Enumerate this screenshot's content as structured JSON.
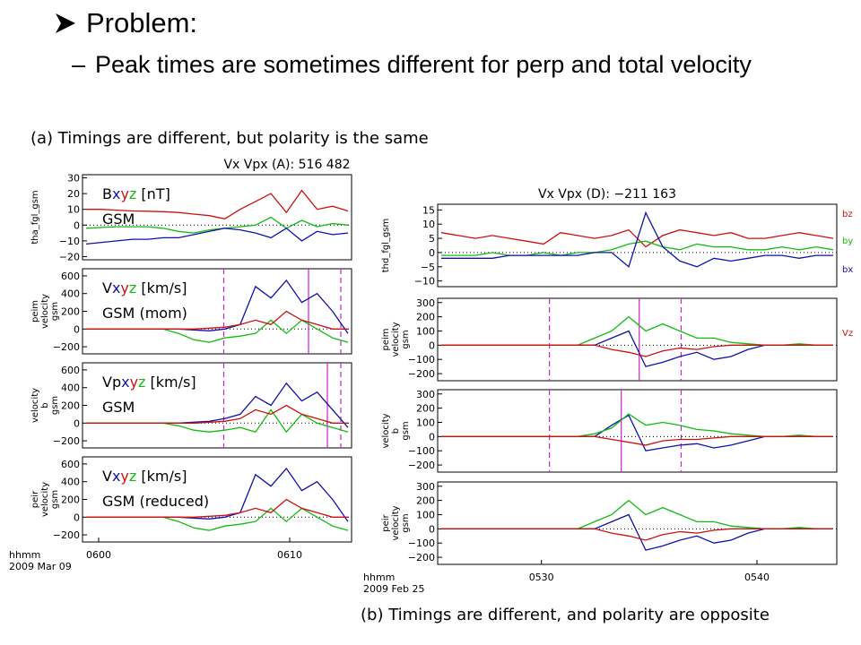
{
  "slide": {
    "problem_label": "Problem:",
    "point_dash": "–",
    "point_text": "Peak times are sometimes different for perp and total velocity",
    "caption_a": "(a) Timings are different, but polarity is the same",
    "caption_b": "(b) Timings are different, and polarity are opposite"
  },
  "colors": {
    "red": "#cc1111",
    "green": "#11bb11",
    "blue": "#1111aa",
    "magenta": "#cc22cc"
  },
  "chart_data": [
    {
      "type": "line",
      "title": "Vx Vpx (A):   516   482",
      "xticks": [
        "0600",
        "0610"
      ],
      "time_label_1": "hhmm",
      "time_label_2": "2009 Mar 09",
      "panels": [
        {
          "ylabel": [
            "tha_fgl_gsm"
          ],
          "yticks": [
            30,
            20,
            10,
            0,
            -10,
            -20
          ],
          "ylim": [
            -22,
            32
          ],
          "overlay": [
            "Bxyz [nT]",
            "GSM"
          ],
          "series": [
            {
              "name": "bz",
              "color": "red",
              "y": [
                10,
                10,
                9.5,
                9,
                8.8,
                8.5,
                8,
                7,
                6,
                4,
                10,
                15,
                20,
                8,
                22,
                10,
                12,
                9
              ]
            },
            {
              "name": "by",
              "color": "green",
              "y": [
                -2,
                -1.5,
                -1,
                -1,
                -1,
                -2,
                -4,
                -5,
                -3,
                -2,
                -1,
                0,
                5,
                -2,
                3,
                -1,
                1,
                0
              ]
            },
            {
              "name": "bx",
              "color": "blue",
              "y": [
                -12,
                -11,
                -10,
                -9,
                -9,
                -8,
                -8,
                -6,
                -4,
                -2,
                -3,
                -5,
                -8,
                -2,
                -10,
                -4,
                -6,
                -5
              ]
            }
          ]
        },
        {
          "ylabel": [
            "peim",
            "velocity",
            "gsm"
          ],
          "yticks": [
            600,
            400,
            200,
            0,
            -200
          ],
          "ylim": [
            -280,
            680
          ],
          "overlay": [
            "Vxyz [km/s]",
            "GSM (mom)"
          ],
          "vlines": [
            {
              "x": 0.525,
              "style": "dashed"
            },
            {
              "x": 0.84,
              "style": "solid"
            },
            {
              "x": 0.96,
              "style": "dashed"
            }
          ],
          "series": [
            {
              "name": "vx",
              "color": "blue",
              "y": [
                0,
                0,
                0,
                0,
                0,
                0,
                0,
                -10,
                -20,
                0,
                50,
                480,
                350,
                550,
                300,
                400,
                200,
                -50
              ]
            },
            {
              "name": "vy",
              "color": "green",
              "y": [
                0,
                0,
                0,
                0,
                0,
                0,
                -50,
                -120,
                -150,
                -100,
                -80,
                -50,
                100,
                -50,
                100,
                0,
                -100,
                -150
              ]
            },
            {
              "name": "vz",
              "color": "red",
              "y": [
                0,
                0,
                0,
                0,
                0,
                0,
                0,
                0,
                10,
                20,
                50,
                100,
                50,
                200,
                100,
                50,
                0,
                0
              ]
            }
          ]
        },
        {
          "ylabel": [
            "velocity",
            "b",
            "gsm"
          ],
          "yticks": [
            600,
            400,
            200,
            0,
            -200
          ],
          "ylim": [
            -280,
            680
          ],
          "overlay": [
            "Vpxyz [km/s]",
            "GSM"
          ],
          "vlines": [
            {
              "x": 0.525,
              "style": "dashed"
            },
            {
              "x": 0.91,
              "style": "solid"
            },
            {
              "x": 0.96,
              "style": "dashed"
            }
          ],
          "series": [
            {
              "name": "vx",
              "color": "blue",
              "y": [
                0,
                0,
                0,
                0,
                0,
                0,
                0,
                10,
                20,
                50,
                100,
                300,
                200,
                450,
                250,
                350,
                150,
                -50
              ]
            },
            {
              "name": "vy",
              "color": "green",
              "y": [
                0,
                0,
                0,
                0,
                0,
                0,
                -30,
                -80,
                -100,
                -80,
                -50,
                -100,
                150,
                -100,
                100,
                0,
                -50,
                -100
              ]
            },
            {
              "name": "vz",
              "color": "red",
              "y": [
                0,
                0,
                0,
                0,
                0,
                0,
                0,
                0,
                10,
                20,
                50,
                150,
                100,
                200,
                100,
                50,
                0,
                0
              ]
            }
          ]
        },
        {
          "ylabel": [
            "peir",
            "velocity",
            "gsm"
          ],
          "yticks": [
            600,
            400,
            200,
            0,
            -200
          ],
          "ylim": [
            -280,
            680
          ],
          "overlay": [
            "Vxyz [km/s]",
            "GSM (reduced)"
          ],
          "series": [
            {
              "name": "vx",
              "color": "blue",
              "y": [
                0,
                0,
                0,
                0,
                0,
                0,
                0,
                -10,
                -20,
                0,
                50,
                480,
                350,
                550,
                300,
                400,
                200,
                -50
              ]
            },
            {
              "name": "vy",
              "color": "green",
              "y": [
                0,
                0,
                0,
                0,
                0,
                0,
                -50,
                -120,
                -150,
                -100,
                -80,
                -50,
                100,
                -50,
                100,
                0,
                -100,
                -150
              ]
            },
            {
              "name": "vz",
              "color": "red",
              "y": [
                0,
                0,
                0,
                0,
                0,
                0,
                0,
                0,
                10,
                20,
                50,
                100,
                50,
                200,
                100,
                50,
                0,
                0
              ]
            }
          ]
        }
      ]
    },
    {
      "type": "line",
      "title": "Vx Vpx (D):   −211   163",
      "xticks": [
        "0530",
        "0540"
      ],
      "time_label_1": "hhmm",
      "time_label_2": "2009 Feb 25",
      "legend": [
        "bz",
        "by",
        "bx",
        "Vz"
      ],
      "panels": [
        {
          "ylabel": [
            "thd_fgl_gsm"
          ],
          "yticks": [
            15,
            10,
            5,
            0,
            -5,
            -10
          ],
          "ylim": [
            -12,
            17
          ],
          "series": [
            {
              "name": "bz",
              "color": "red",
              "y": [
                7,
                6,
                5,
                6,
                5,
                4,
                3,
                7,
                6,
                5,
                6,
                8,
                2,
                6,
                8,
                7,
                6,
                7,
                5,
                5,
                6,
                7,
                6,
                5
              ]
            },
            {
              "name": "by",
              "color": "green",
              "y": [
                -1,
                -1,
                -1,
                0,
                -1,
                -1,
                0,
                -1,
                0,
                0,
                1,
                3,
                4,
                2,
                1,
                3,
                2,
                2,
                1,
                1,
                2,
                1,
                2,
                1
              ]
            },
            {
              "name": "bx",
              "color": "blue",
              "y": [
                -2,
                -2,
                -2,
                -2,
                -1,
                -1,
                -1,
                -1,
                -1,
                0,
                0,
                -5,
                14,
                2,
                -3,
                -5,
                -2,
                -3,
                -2,
                -1,
                -1,
                -2,
                -1,
                -1
              ]
            }
          ]
        },
        {
          "ylabel": [
            "peim",
            "velocity",
            "gsm"
          ],
          "yticks": [
            300,
            200,
            100,
            0,
            -100,
            -200
          ],
          "ylim": [
            -250,
            330
          ],
          "vlines": [
            {
              "x": 0.28,
              "style": "dashed"
            },
            {
              "x": 0.505,
              "style": "solid"
            },
            {
              "x": 0.61,
              "style": "dashed"
            }
          ],
          "series": [
            {
              "name": "vx",
              "color": "blue",
              "y": [
                0,
                0,
                0,
                0,
                0,
                0,
                0,
                0,
                0,
                0,
                50,
                100,
                -150,
                -120,
                -80,
                -50,
                -100,
                -80,
                -30,
                0,
                0,
                0,
                0,
                0
              ]
            },
            {
              "name": "vy",
              "color": "green",
              "y": [
                0,
                0,
                0,
                0,
                0,
                0,
                0,
                0,
                0,
                50,
                100,
                200,
                100,
                150,
                100,
                50,
                50,
                20,
                10,
                0,
                0,
                10,
                0,
                0
              ]
            },
            {
              "name": "vz",
              "color": "red",
              "y": [
                0,
                0,
                0,
                0,
                0,
                0,
                0,
                0,
                0,
                0,
                -30,
                -50,
                -80,
                -40,
                -20,
                -30,
                -10,
                0,
                0,
                0,
                0,
                0,
                0,
                0
              ]
            }
          ]
        },
        {
          "ylabel": [
            "velocity",
            "b",
            "gsm"
          ],
          "yticks": [
            300,
            200,
            100,
            0,
            -100,
            -200
          ],
          "ylim": [
            -250,
            330
          ],
          "vlines": [
            {
              "x": 0.28,
              "style": "dashed"
            },
            {
              "x": 0.46,
              "style": "solid"
            },
            {
              "x": 0.61,
              "style": "dashed"
            }
          ],
          "series": [
            {
              "name": "vx",
              "color": "blue",
              "y": [
                0,
                0,
                0,
                0,
                0,
                0,
                0,
                0,
                0,
                0,
                80,
                150,
                -100,
                -80,
                -60,
                -50,
                -80,
                -60,
                -30,
                0,
                0,
                0,
                0,
                0
              ]
            },
            {
              "name": "vy",
              "color": "green",
              "y": [
                0,
                0,
                0,
                0,
                0,
                0,
                0,
                0,
                0,
                20,
                60,
                160,
                80,
                100,
                80,
                50,
                40,
                20,
                10,
                0,
                0,
                10,
                0,
                0
              ]
            },
            {
              "name": "vz",
              "color": "red",
              "y": [
                0,
                0,
                0,
                0,
                0,
                0,
                0,
                0,
                0,
                0,
                -20,
                -40,
                -60,
                -30,
                -20,
                -20,
                -10,
                0,
                0,
                0,
                0,
                0,
                0,
                0
              ]
            }
          ]
        },
        {
          "ylabel": [
            "peir",
            "velocity",
            "gsm"
          ],
          "yticks": [
            300,
            200,
            100,
            0,
            -100,
            -200
          ],
          "ylim": [
            -250,
            330
          ],
          "series": [
            {
              "name": "vx",
              "color": "blue",
              "y": [
                0,
                0,
                0,
                0,
                0,
                0,
                0,
                0,
                0,
                0,
                50,
                100,
                -150,
                -120,
                -80,
                -50,
                -100,
                -80,
                -30,
                0,
                0,
                0,
                0,
                0
              ]
            },
            {
              "name": "vy",
              "color": "green",
              "y": [
                0,
                0,
                0,
                0,
                0,
                0,
                0,
                0,
                0,
                50,
                100,
                200,
                100,
                150,
                100,
                50,
                50,
                20,
                10,
                0,
                0,
                10,
                0,
                0
              ]
            },
            {
              "name": "vz",
              "color": "red",
              "y": [
                0,
                0,
                0,
                0,
                0,
                0,
                0,
                0,
                0,
                0,
                -30,
                -50,
                -80,
                -40,
                -20,
                -30,
                -10,
                0,
                0,
                0,
                0,
                0,
                0,
                0
              ]
            }
          ]
        }
      ]
    }
  ]
}
